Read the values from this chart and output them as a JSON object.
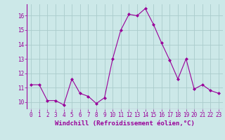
{
  "x": [
    0,
    1,
    2,
    3,
    4,
    5,
    6,
    7,
    8,
    9,
    10,
    11,
    12,
    13,
    14,
    15,
    16,
    17,
    18,
    19,
    20,
    21,
    22,
    23
  ],
  "y": [
    11.2,
    11.2,
    10.1,
    10.1,
    9.8,
    11.6,
    10.6,
    10.4,
    9.9,
    10.3,
    13.0,
    15.0,
    16.1,
    16.0,
    16.5,
    15.4,
    14.1,
    12.9,
    11.6,
    13.0,
    10.9,
    11.2,
    10.8,
    10.6
  ],
  "line_color": "#990099",
  "marker": "D",
  "marker_size": 2,
  "bg_color": "#cce8e8",
  "grid_color": "#aacccc",
  "xlabel": "Windchill (Refroidissement éolien,°C)",
  "ylim": [
    9.5,
    16.8
  ],
  "xlim": [
    -0.5,
    23.5
  ],
  "yticks": [
    10,
    11,
    12,
    13,
    14,
    15,
    16
  ],
  "xticks": [
    0,
    1,
    2,
    3,
    4,
    5,
    6,
    7,
    8,
    9,
    10,
    11,
    12,
    13,
    14,
    15,
    16,
    17,
    18,
    19,
    20,
    21,
    22,
    23
  ],
  "tick_color": "#990099",
  "tick_fontsize": 5.5,
  "label_fontsize": 6.5
}
